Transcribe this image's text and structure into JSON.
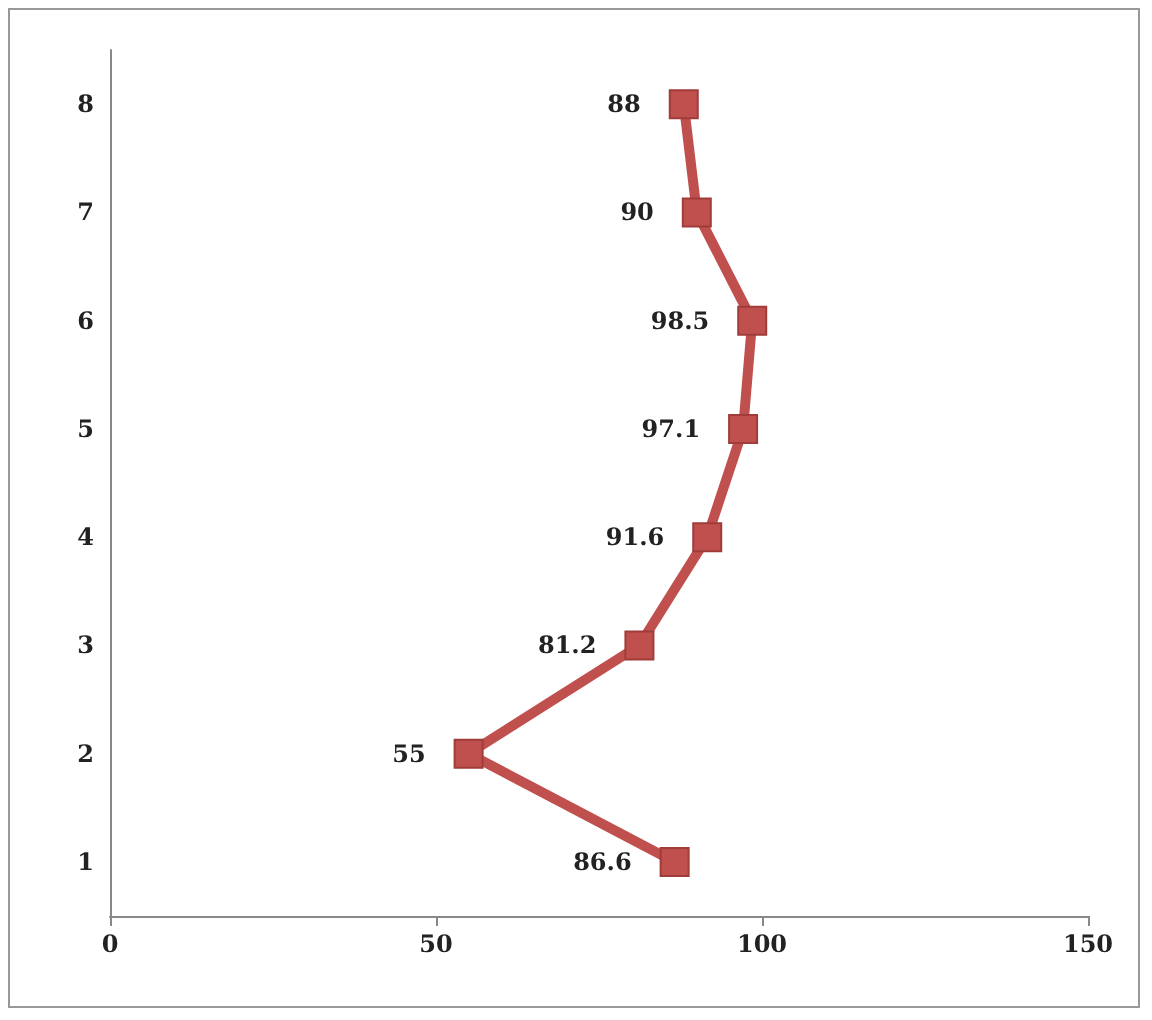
{
  "chart_data": {
    "type": "line",
    "orientation": "horizontal",
    "categories": [
      "8",
      "7",
      "6",
      "5",
      "4",
      "3",
      "2",
      "1"
    ],
    "series": [
      {
        "color": "#c0504d",
        "values": [
          88,
          90,
          98.5,
          97.1,
          91.6,
          81.2,
          55,
          86.6
        ]
      }
    ],
    "xlim": [
      0,
      150
    ],
    "xticks": [
      0,
      50,
      100,
      150
    ],
    "data_labels": true,
    "marker": "square",
    "line_style": "solid"
  }
}
